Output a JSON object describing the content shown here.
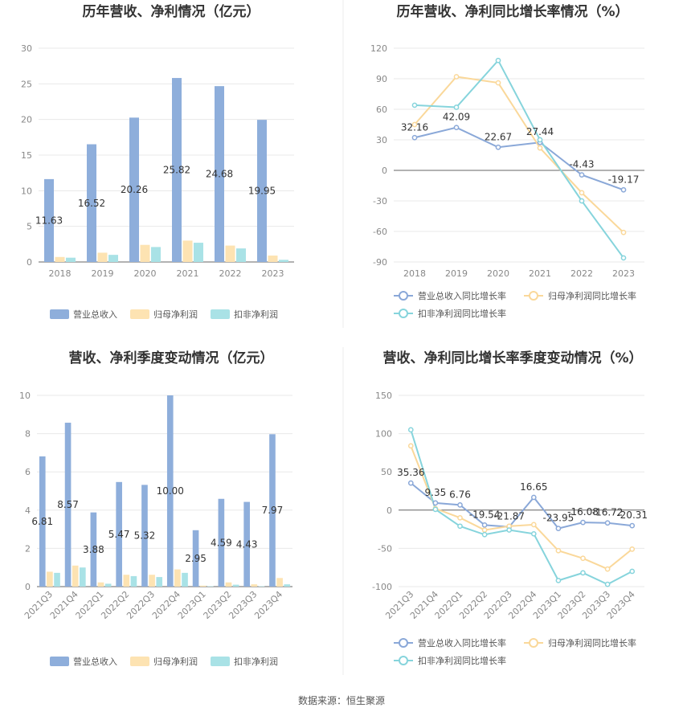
{
  "colors": {
    "revenue": "#8eaedb",
    "parent": "#fde3b2",
    "deducted": "#a9e2e6",
    "revenue_line": "#8aa8d8",
    "parent_line": "#fad89a",
    "deducted_line": "#86d4dc",
    "grid": "#e8e8e8",
    "axis": "#666666"
  },
  "source": "数据来源：恒生聚源",
  "chart_data": [
    {
      "type": "bar",
      "title": "历年营收、净利情况（亿元）",
      "categories": [
        "2018",
        "2019",
        "2020",
        "2021",
        "2022",
        "2023"
      ],
      "ylim": [
        0,
        30
      ],
      "yticks": [
        0,
        5,
        10,
        15,
        20,
        25,
        30
      ],
      "series": [
        {
          "name": "营业总收入",
          "values": [
            11.63,
            16.52,
            20.26,
            25.82,
            24.68,
            19.95
          ],
          "labels": [
            "11.63",
            "16.52",
            "20.26",
            "25.82",
            "24.68",
            "19.95"
          ]
        },
        {
          "name": "归母净利润",
          "values": [
            0.7,
            1.3,
            2.4,
            3.0,
            2.3,
            0.9
          ]
        },
        {
          "name": "扣非净利润",
          "values": [
            0.6,
            1.0,
            2.1,
            2.7,
            1.9,
            0.3
          ]
        }
      ],
      "legend": "bottom"
    },
    {
      "type": "line",
      "title": "历年营收、净利同比增长率情况（%）",
      "categories": [
        "2018",
        "2019",
        "2020",
        "2021",
        "2022",
        "2023"
      ],
      "ylim": [
        -90,
        120
      ],
      "yticks": [
        -90,
        -60,
        -30,
        0,
        30,
        60,
        90,
        120
      ],
      "series": [
        {
          "name": "营业总收入同比增长率",
          "values": [
            32.16,
            42.09,
            22.67,
            27.44,
            -4.43,
            -19.17
          ],
          "labels": [
            "32.16",
            "42.09",
            "22.67",
            "27.44",
            "-4.43",
            "-19.17"
          ]
        },
        {
          "name": "归母净利润同比增长率",
          "values": [
            45,
            92,
            86,
            22,
            -22,
            -61
          ]
        },
        {
          "name": "扣非净利润同比增长率",
          "values": [
            64,
            62,
            108,
            30,
            -30,
            -86
          ]
        }
      ],
      "legend": "bottom"
    },
    {
      "type": "bar",
      "title": "营收、净利季度变动情况（亿元）",
      "categories": [
        "2021Q3",
        "2021Q4",
        "2022Q1",
        "2022Q2",
        "2022Q3",
        "2022Q4",
        "2023Q1",
        "2023Q2",
        "2023Q3",
        "2023Q4"
      ],
      "ylim": [
        0,
        10
      ],
      "yticks": [
        0,
        2,
        4,
        6,
        8,
        10
      ],
      "series": [
        {
          "name": "营业总收入",
          "values": [
            6.81,
            8.57,
            3.88,
            5.47,
            5.32,
            10.0,
            2.95,
            4.59,
            4.43,
            7.97
          ],
          "labels": [
            "6.81",
            "8.57",
            "3.88",
            "5.47",
            "5.32",
            "10.00",
            "2.95",
            "4.59",
            "4.43",
            "7.97"
          ]
        },
        {
          "name": "归母净利润",
          "values": [
            0.78,
            1.1,
            0.22,
            0.62,
            0.62,
            0.9,
            0.05,
            0.22,
            0.12,
            0.45
          ]
        },
        {
          "name": "扣非净利润",
          "values": [
            0.72,
            1.0,
            0.15,
            0.55,
            0.5,
            0.72,
            0.02,
            0.1,
            0.02,
            0.12
          ]
        }
      ],
      "legend": "bottom"
    },
    {
      "type": "line",
      "title": "营收、净利同比增长率季度变动情况（%）",
      "categories": [
        "2021Q3",
        "2021Q4",
        "2022Q1",
        "2022Q2",
        "2022Q3",
        "2022Q4",
        "2023Q1",
        "2023Q2",
        "2023Q3",
        "2023Q4"
      ],
      "ylim": [
        -100,
        150
      ],
      "yticks": [
        -100,
        -50,
        0,
        50,
        100,
        150
      ],
      "series": [
        {
          "name": "营业总收入同比增长率",
          "values": [
            35.36,
            9.35,
            6.76,
            -19.54,
            -21.87,
            16.65,
            -23.95,
            -16.08,
            -16.72,
            -20.31
          ],
          "labels": [
            "35.36",
            "9.35",
            "6.76",
            "-19.54",
            "-21.87",
            "16.65",
            "-23.95",
            "-16.08",
            "-16.72",
            "-20.31"
          ]
        },
        {
          "name": "归母净利润同比增长率",
          "values": [
            84,
            2,
            -10,
            -26,
            -21,
            -19,
            -53,
            -63,
            -77,
            -51
          ]
        },
        {
          "name": "扣非净利润同比增长率",
          "values": [
            105,
            1,
            -21,
            -32,
            -26,
            -31,
            -92,
            -82,
            -97,
            -80
          ]
        }
      ],
      "legend": "bottom"
    }
  ]
}
